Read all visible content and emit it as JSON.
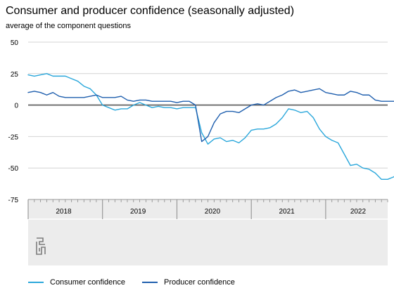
{
  "chart_data": {
    "type": "line",
    "title": "Consumer and producer confidence (seasonally adjusted)",
    "subtitle": "average of the component questions",
    "ylim": [
      -75,
      50
    ],
    "yticks": [
      50,
      25,
      0,
      -25,
      -50,
      -75
    ],
    "year_labels": [
      "2018",
      "2019",
      "2020",
      "2021",
      "2022"
    ],
    "x_start": "2018-01",
    "x_end": "2022-11",
    "grid": true,
    "zero_line": true,
    "legend_position": "bottom-left",
    "series": [
      {
        "name": "Consumer confidence",
        "color": "#2AA7DB",
        "values": [
          24,
          23,
          24,
          25,
          23,
          23,
          23,
          21,
          19,
          15,
          13,
          8,
          0,
          -2,
          -4,
          -3,
          -3,
          0,
          2,
          0,
          -2,
          -1,
          -2,
          -2,
          -3,
          -2,
          -2,
          -2,
          -22,
          -31,
          -27,
          -26,
          -29,
          -28,
          -30,
          -26,
          -20,
          -19,
          -19,
          -18,
          -15,
          -10,
          -3,
          -4,
          -6,
          -5,
          -10,
          -19,
          -25,
          -28,
          -30,
          -39,
          -48,
          -47,
          -50,
          -51,
          -54,
          -59,
          -59,
          -57,
          -52
        ]
      },
      {
        "name": "Producer confidence",
        "color": "#1F5FAE",
        "values": [
          10,
          11,
          10,
          8,
          10,
          7,
          6,
          6,
          6,
          6,
          7,
          8,
          6,
          6,
          6,
          7,
          4,
          3,
          4,
          4,
          3,
          3,
          3,
          3,
          2,
          3,
          3,
          0,
          -29,
          -25,
          -14,
          -7,
          -5,
          -5,
          -6,
          -3,
          0,
          1,
          0,
          3,
          6,
          8,
          11,
          12,
          10,
          11,
          12,
          13,
          10,
          9,
          8,
          8,
          11,
          10,
          8,
          8,
          4,
          3,
          3,
          3,
          4
        ]
      }
    ]
  }
}
